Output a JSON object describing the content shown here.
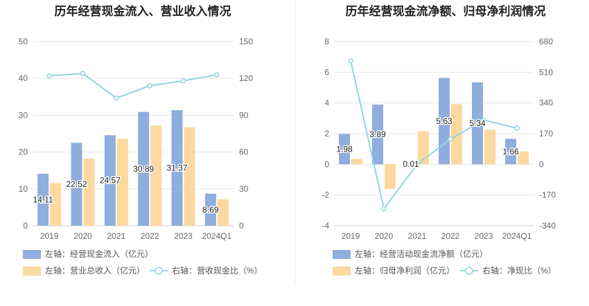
{
  "chart_data": [
    {
      "type": "bar",
      "title": "历年经营现金流入、营业收入情况",
      "categories": [
        "2019",
        "2020",
        "2021",
        "2022",
        "2023",
        "2024Q1"
      ],
      "ylim_left": [
        0,
        50
      ],
      "yticks_left": [
        "0",
        "10",
        "20",
        "30",
        "40",
        "50"
      ],
      "ylim_right": [
        0,
        150
      ],
      "yticks_right": [
        "0",
        "30",
        "60",
        "90",
        "120",
        "150"
      ],
      "grid": true,
      "legend_position": "bottom",
      "series": [
        {
          "name": "左轴：经营现金流入（亿元）",
          "type": "bar",
          "axis": "left",
          "color": "#8eaedd",
          "values": [
            14.11,
            22.52,
            24.57,
            30.89,
            31.37,
            8.69
          ],
          "labels": [
            "14.11",
            "22.52",
            "24.57",
            "30.89",
            "31.37",
            "8.69"
          ]
        },
        {
          "name": "左轴：营业总收入（亿元）",
          "type": "bar",
          "axis": "left",
          "color": "#fdd89f",
          "values": [
            11.6,
            18.2,
            23.6,
            27.2,
            26.7,
            7.2
          ]
        },
        {
          "name": "右轴：营收现金比（%）",
          "type": "line",
          "axis": "right",
          "color": "#8ed6dd",
          "values": [
            122,
            124,
            104,
            114,
            118,
            123
          ]
        }
      ]
    },
    {
      "type": "bar",
      "title": "历年经营现金流净额、归母净利润情况",
      "categories": [
        "2019",
        "2020",
        "2021",
        "2022",
        "2023",
        "2024Q1"
      ],
      "ylim_left": [
        -4,
        8
      ],
      "yticks_left": [
        "-4",
        "-2",
        "0",
        "2",
        "4",
        "6",
        "8"
      ],
      "ylim_right": [
        -340,
        680
      ],
      "yticks_right": [
        "-340",
        "-170",
        "0",
        "170",
        "340",
        "510",
        "680"
      ],
      "grid": true,
      "legend_position": "bottom",
      "series": [
        {
          "name": "左轴：经营活动现金流净额（亿元）",
          "type": "bar",
          "axis": "left",
          "color": "#8eaedd",
          "values": [
            1.98,
            3.89,
            0.01,
            5.63,
            5.34,
            1.66
          ],
          "labels": [
            "1.98",
            "3.89",
            "0.01",
            "5.63",
            "5.34",
            "1.66"
          ]
        },
        {
          "name": "左轴：归母净利润（亿元）",
          "type": "bar",
          "axis": "left",
          "color": "#fdd89f",
          "values": [
            0.35,
            -1.6,
            2.15,
            3.92,
            2.25,
            0.85
          ]
        },
        {
          "name": "右轴：净现比（%）",
          "type": "line",
          "axis": "right",
          "color": "#8ed6dd",
          "values": [
            575,
            -245,
            0,
            140,
            245,
            200
          ]
        }
      ]
    }
  ]
}
